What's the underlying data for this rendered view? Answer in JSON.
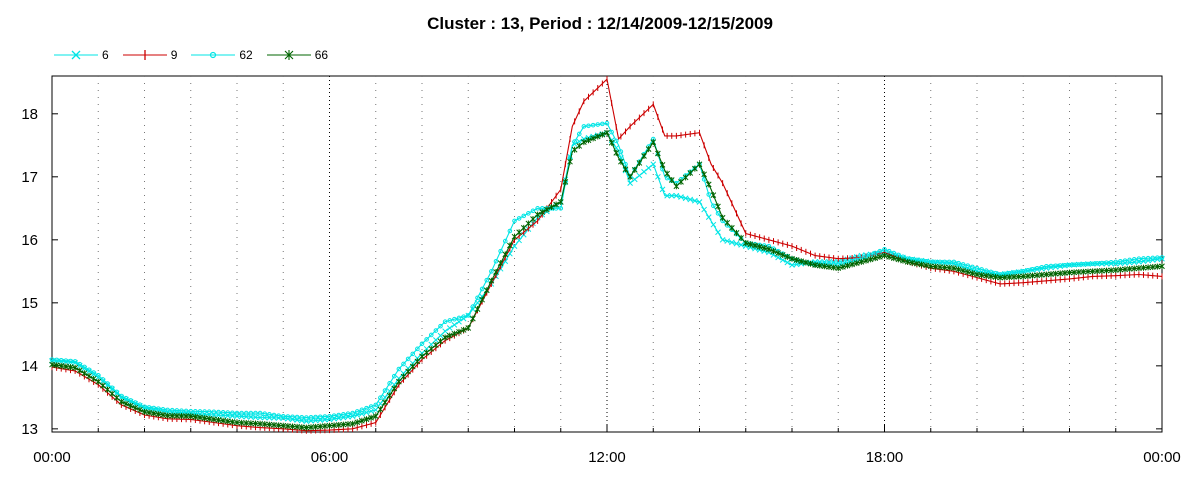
{
  "chart_data": {
    "type": "line",
    "title": "Cluster : 13, Period : 12/14/2009-12/15/2009",
    "xlabel": "",
    "ylabel": "",
    "x_unit": "hours",
    "xlim": [
      0,
      24
    ],
    "ylim": [
      12.95,
      18.6
    ],
    "x_ticks": [
      {
        "x": 0,
        "label": "00:00"
      },
      {
        "x": 6,
        "label": "06:00"
      },
      {
        "x": 12,
        "label": "12:00"
      },
      {
        "x": 18,
        "label": "18:00"
      },
      {
        "x": 24,
        "label": "00:00"
      }
    ],
    "y_ticks": [
      13,
      14,
      15,
      16,
      17,
      18
    ],
    "grid": "dotted",
    "legend_position": "top-left",
    "series": [
      {
        "name": "6",
        "color": "#00e5e5",
        "marker": "x",
        "points": [
          [
            0,
            14.08
          ],
          [
            0.5,
            14.05
          ],
          [
            1,
            13.82
          ],
          [
            1.5,
            13.5
          ],
          [
            2,
            13.33
          ],
          [
            2.5,
            13.27
          ],
          [
            3,
            13.25
          ],
          [
            3.5,
            13.22
          ],
          [
            4,
            13.2
          ],
          [
            4.5,
            13.18
          ],
          [
            5,
            13.17
          ],
          [
            5.5,
            13.12
          ],
          [
            6,
            13.15
          ],
          [
            6.5,
            13.2
          ],
          [
            7,
            13.3
          ],
          [
            7.5,
            13.8
          ],
          [
            8,
            14.2
          ],
          [
            8.5,
            14.55
          ],
          [
            9,
            14.8
          ],
          [
            9.5,
            15.3
          ],
          [
            10,
            15.9
          ],
          [
            10.5,
            16.35
          ],
          [
            11,
            16.6
          ],
          [
            11.25,
            17.5
          ],
          [
            11.5,
            17.6
          ],
          [
            12,
            17.7
          ],
          [
            12.25,
            17.4
          ],
          [
            12.5,
            16.9
          ],
          [
            13,
            17.2
          ],
          [
            13.25,
            16.7
          ],
          [
            13.5,
            16.7
          ],
          [
            14,
            16.6
          ],
          [
            14.25,
            16.3
          ],
          [
            14.5,
            16.0
          ],
          [
            15,
            15.9
          ],
          [
            15.5,
            15.8
          ],
          [
            16,
            15.6
          ],
          [
            16.5,
            15.65
          ],
          [
            17,
            15.65
          ],
          [
            17.5,
            15.75
          ],
          [
            18,
            15.8
          ],
          [
            18.5,
            15.7
          ],
          [
            19,
            15.65
          ],
          [
            19.5,
            15.62
          ],
          [
            20,
            15.5
          ],
          [
            20.5,
            15.45
          ],
          [
            21,
            15.5
          ],
          [
            21.5,
            15.55
          ],
          [
            22,
            15.6
          ],
          [
            22.5,
            15.62
          ],
          [
            23,
            15.62
          ],
          [
            23.5,
            15.65
          ],
          [
            24,
            15.7
          ]
        ]
      },
      {
        "name": "9",
        "color": "#cc0000",
        "marker": "+",
        "points": [
          [
            0,
            13.98
          ],
          [
            0.5,
            13.92
          ],
          [
            1,
            13.7
          ],
          [
            1.5,
            13.38
          ],
          [
            2,
            13.22
          ],
          [
            2.5,
            13.16
          ],
          [
            3,
            13.15
          ],
          [
            3.5,
            13.1
          ],
          [
            4,
            13.05
          ],
          [
            4.5,
            13.02
          ],
          [
            5,
            13.0
          ],
          [
            5.5,
            12.97
          ],
          [
            6,
            12.98
          ],
          [
            6.5,
            13.0
          ],
          [
            7,
            13.1
          ],
          [
            7.5,
            13.7
          ],
          [
            8,
            14.1
          ],
          [
            8.5,
            14.4
          ],
          [
            9,
            14.6
          ],
          [
            9.5,
            15.3
          ],
          [
            10,
            16.0
          ],
          [
            10.5,
            16.3
          ],
          [
            11,
            16.8
          ],
          [
            11.25,
            17.8
          ],
          [
            11.5,
            18.2
          ],
          [
            12,
            18.55
          ],
          [
            12.25,
            17.6
          ],
          [
            12.5,
            17.8
          ],
          [
            13,
            18.15
          ],
          [
            13.25,
            17.65
          ],
          [
            13.5,
            17.65
          ],
          [
            14,
            17.7
          ],
          [
            14.25,
            17.2
          ],
          [
            14.5,
            16.9
          ],
          [
            15,
            16.1
          ],
          [
            15.5,
            16.0
          ],
          [
            16,
            15.9
          ],
          [
            16.5,
            15.75
          ],
          [
            17,
            15.7
          ],
          [
            17.5,
            15.72
          ],
          [
            18,
            15.8
          ],
          [
            18.5,
            15.65
          ],
          [
            19,
            15.55
          ],
          [
            19.5,
            15.5
          ],
          [
            20,
            15.4
          ],
          [
            20.5,
            15.3
          ],
          [
            21,
            15.32
          ],
          [
            21.5,
            15.35
          ],
          [
            22,
            15.38
          ],
          [
            22.5,
            15.42
          ],
          [
            23,
            15.43
          ],
          [
            23.5,
            15.45
          ],
          [
            24,
            15.42
          ]
        ]
      },
      {
        "name": "62",
        "color": "#00e5e5",
        "marker": "o",
        "points": [
          [
            0,
            14.1
          ],
          [
            0.5,
            14.07
          ],
          [
            1,
            13.85
          ],
          [
            1.5,
            13.52
          ],
          [
            2,
            13.35
          ],
          [
            2.5,
            13.3
          ],
          [
            3,
            13.28
          ],
          [
            3.5,
            13.27
          ],
          [
            4,
            13.25
          ],
          [
            4.5,
            13.25
          ],
          [
            5,
            13.2
          ],
          [
            5.5,
            13.18
          ],
          [
            6,
            13.2
          ],
          [
            6.5,
            13.25
          ],
          [
            7,
            13.38
          ],
          [
            7.5,
            13.95
          ],
          [
            8,
            14.35
          ],
          [
            8.5,
            14.7
          ],
          [
            9,
            14.8
          ],
          [
            9.5,
            15.5
          ],
          [
            10,
            16.3
          ],
          [
            10.5,
            16.5
          ],
          [
            11,
            16.5
          ],
          [
            11.25,
            17.5
          ],
          [
            11.5,
            17.8
          ],
          [
            12,
            17.85
          ],
          [
            12.25,
            17.5
          ],
          [
            12.5,
            17.0
          ],
          [
            13,
            17.6
          ],
          [
            13.25,
            17.0
          ],
          [
            13.5,
            16.9
          ],
          [
            14,
            17.2
          ],
          [
            14.25,
            16.6
          ],
          [
            14.5,
            16.3
          ],
          [
            15,
            15.95
          ],
          [
            15.5,
            15.9
          ],
          [
            16,
            15.7
          ],
          [
            16.5,
            15.6
          ],
          [
            17,
            15.6
          ],
          [
            17.5,
            15.7
          ],
          [
            18,
            15.85
          ],
          [
            18.5,
            15.7
          ],
          [
            19,
            15.65
          ],
          [
            19.5,
            15.65
          ],
          [
            20,
            15.55
          ],
          [
            20.5,
            15.45
          ],
          [
            21,
            15.5
          ],
          [
            21.5,
            15.58
          ],
          [
            22,
            15.6
          ],
          [
            22.5,
            15.62
          ],
          [
            23,
            15.65
          ],
          [
            23.5,
            15.7
          ],
          [
            24,
            15.72
          ]
        ]
      },
      {
        "name": "66",
        "color": "#006400",
        "marker": "*",
        "points": [
          [
            0,
            14.02
          ],
          [
            0.5,
            13.97
          ],
          [
            1,
            13.75
          ],
          [
            1.5,
            13.43
          ],
          [
            2,
            13.27
          ],
          [
            2.5,
            13.21
          ],
          [
            3,
            13.2
          ],
          [
            3.5,
            13.15
          ],
          [
            4,
            13.1
          ],
          [
            4.5,
            13.08
          ],
          [
            5,
            13.05
          ],
          [
            5.5,
            13.02
          ],
          [
            6,
            13.05
          ],
          [
            6.5,
            13.08
          ],
          [
            7,
            13.2
          ],
          [
            7.5,
            13.75
          ],
          [
            8,
            14.15
          ],
          [
            8.5,
            14.45
          ],
          [
            9,
            14.6
          ],
          [
            9.5,
            15.35
          ],
          [
            10,
            16.05
          ],
          [
            10.5,
            16.4
          ],
          [
            11,
            16.6
          ],
          [
            11.25,
            17.4
          ],
          [
            11.5,
            17.55
          ],
          [
            12,
            17.7
          ],
          [
            12.25,
            17.3
          ],
          [
            12.5,
            17.0
          ],
          [
            13,
            17.55
          ],
          [
            13.25,
            17.1
          ],
          [
            13.5,
            16.85
          ],
          [
            14,
            17.2
          ],
          [
            14.25,
            16.8
          ],
          [
            14.5,
            16.35
          ],
          [
            15,
            15.95
          ],
          [
            15.5,
            15.85
          ],
          [
            16,
            15.7
          ],
          [
            16.5,
            15.6
          ],
          [
            17,
            15.55
          ],
          [
            17.5,
            15.65
          ],
          [
            18,
            15.75
          ],
          [
            18.5,
            15.65
          ],
          [
            19,
            15.58
          ],
          [
            19.5,
            15.55
          ],
          [
            20,
            15.45
          ],
          [
            20.5,
            15.4
          ],
          [
            21,
            15.42
          ],
          [
            21.5,
            15.45
          ],
          [
            22,
            15.48
          ],
          [
            22.5,
            15.5
          ],
          [
            23,
            15.52
          ],
          [
            23.5,
            15.55
          ],
          [
            24,
            15.58
          ]
        ]
      }
    ]
  }
}
